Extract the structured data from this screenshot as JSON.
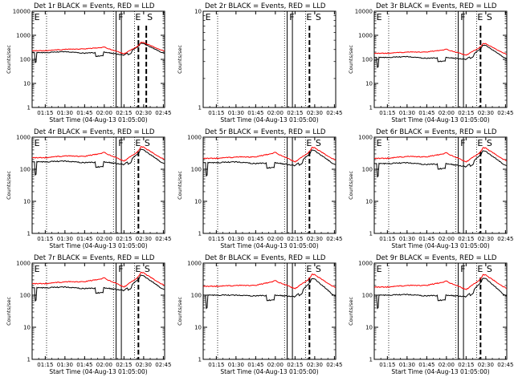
{
  "figure": {
    "xlabel": "Start Time (04-Aug-13 01:05:00)",
    "ylabel": "Counts/sec",
    "series_legend": "BLACK = Events, RED = LLD",
    "colors": {
      "events": "#000000",
      "lld": "#ff0000",
      "axes": "#000000",
      "background": "#ffffff"
    }
  },
  "chart_data": [
    {
      "type": "line",
      "title": "Det 1r BLACK = Events, RED = LLD",
      "x": [
        "01:15",
        "01:30",
        "01:45",
        "02:00",
        "02:15",
        "02:30",
        "02:45"
      ],
      "xlim_minutes": [
        65,
        166
      ],
      "yscale": "log",
      "ylim": [
        1,
        10000
      ],
      "yticks": [
        "1",
        "10",
        "100",
        "1000",
        "10000"
      ],
      "series": [
        {
          "name": "Events",
          "color": "#000000",
          "values": [
            190,
            210,
            180,
            200,
            150,
            450,
            180
          ]
        },
        {
          "name": "LLD",
          "color": "#ff0000",
          "values": [
            230,
            260,
            270,
            320,
            170,
            480,
            230
          ]
        }
      ],
      "dotted_lines_minutes": [
        76,
        127,
        143
      ],
      "dashed_lines_minutes": [
        146,
        152
      ],
      "solid_lines_minutes": [
        129,
        133
      ],
      "annotations": [
        {
          "text": "E",
          "minute": 66
        },
        {
          "text": "F",
          "minute": 130
        },
        {
          "text": "E",
          "minute": 143
        },
        {
          "text": "S",
          "minute": 152
        }
      ]
    },
    {
      "type": "line",
      "title": "Det 2r BLACK = Events, RED = LLD",
      "x": [
        "01:15",
        "01:30",
        "01:45",
        "02:00",
        "02:15",
        "02:30",
        "02:45"
      ],
      "xlim_minutes": [
        65,
        166
      ],
      "yscale": "log",
      "ylim": [
        1,
        10
      ],
      "yticks": [
        "1",
        "10"
      ],
      "series": [],
      "dotted_lines_minutes": [
        76,
        127,
        143
      ],
      "dashed_lines_minutes": [
        146
      ],
      "solid_lines_minutes": [
        129,
        133
      ],
      "annotations": [
        {
          "text": "E",
          "minute": 66
        },
        {
          "text": "F",
          "minute": 130
        },
        {
          "text": "E",
          "minute": 143
        },
        {
          "text": "S",
          "minute": 150
        }
      ]
    },
    {
      "type": "line",
      "title": "Det 3r BLACK = Events, RED = LLD",
      "x": [
        "01:15",
        "01:30",
        "01:45",
        "02:00",
        "02:15",
        "02:30",
        "02:45"
      ],
      "xlim_minutes": [
        65,
        166
      ],
      "yscale": "log",
      "ylim": [
        1,
        10000
      ],
      "yticks": [
        "1",
        "10",
        "100",
        "1000",
        "10000"
      ],
      "series": [
        {
          "name": "Events",
          "color": "#000000",
          "values": [
            120,
            130,
            110,
            120,
            100,
            380,
            110
          ]
        },
        {
          "name": "LLD",
          "color": "#ff0000",
          "values": [
            180,
            200,
            200,
            260,
            150,
            430,
            170
          ]
        }
      ],
      "dotted_lines_minutes": [
        76,
        127,
        143
      ],
      "dashed_lines_minutes": [
        146
      ],
      "solid_lines_minutes": [
        129,
        133
      ],
      "annotations": [
        {
          "text": "E",
          "minute": 66
        },
        {
          "text": "F",
          "minute": 130
        },
        {
          "text": "E",
          "minute": 143
        },
        {
          "text": "S",
          "minute": 150
        }
      ]
    },
    {
      "type": "line",
      "title": "Det 4r BLACK = Events, RED = LLD",
      "x": [
        "01:15",
        "01:30",
        "01:45",
        "02:00",
        "02:15",
        "02:30",
        "02:45"
      ],
      "xlim_minutes": [
        65,
        166
      ],
      "yscale": "log",
      "ylim": [
        1,
        1000
      ],
      "yticks": [
        "1",
        "10",
        "100",
        "1000"
      ],
      "series": [
        {
          "name": "Events",
          "color": "#000000",
          "values": [
            170,
            180,
            160,
            170,
            140,
            400,
            150
          ]
        },
        {
          "name": "LLD",
          "color": "#ff0000",
          "values": [
            230,
            260,
            250,
            330,
            180,
            470,
            210
          ]
        }
      ],
      "dotted_lines_minutes": [
        76,
        127,
        143
      ],
      "dashed_lines_minutes": [
        146
      ],
      "solid_lines_minutes": [
        129,
        133
      ],
      "annotations": [
        {
          "text": "E",
          "minute": 66
        },
        {
          "text": "F",
          "minute": 130
        },
        {
          "text": "E",
          "minute": 143
        },
        {
          "text": "S",
          "minute": 150
        }
      ]
    },
    {
      "type": "line",
      "title": "Det 5r BLACK = Events, RED = LLD",
      "x": [
        "01:15",
        "01:30",
        "01:45",
        "02:00",
        "02:15",
        "02:30",
        "02:45"
      ],
      "xlim_minutes": [
        65,
        166
      ],
      "yscale": "log",
      "ylim": [
        1,
        1000
      ],
      "yticks": [
        "1",
        "10",
        "100",
        "1000"
      ],
      "series": [
        {
          "name": "Events",
          "color": "#000000",
          "values": [
            160,
            170,
            150,
            160,
            130,
            380,
            140
          ]
        },
        {
          "name": "LLD",
          "color": "#ff0000",
          "values": [
            220,
            240,
            240,
            330,
            170,
            450,
            200
          ]
        }
      ],
      "dotted_lines_minutes": [
        76,
        127,
        143
      ],
      "dashed_lines_minutes": [
        146
      ],
      "solid_lines_minutes": [
        129,
        133
      ],
      "annotations": [
        {
          "text": "E",
          "minute": 143
        },
        {
          "text": "S",
          "minute": 150
        }
      ]
    },
    {
      "type": "line",
      "title": "Det 6r BLACK = Events, RED = LLD",
      "x": [
        "01:15",
        "01:30",
        "01:45",
        "02:00",
        "02:15",
        "02:30",
        "02:45"
      ],
      "xlim_minutes": [
        65,
        166
      ],
      "yscale": "log",
      "ylim": [
        1,
        1000
      ],
      "yticks": [
        "1",
        "10",
        "100",
        "1000"
      ],
      "series": [
        {
          "name": "Events",
          "color": "#000000",
          "values": [
            150,
            160,
            140,
            150,
            120,
            360,
            130
          ]
        },
        {
          "name": "LLD",
          "color": "#ff0000",
          "values": [
            220,
            250,
            240,
            320,
            170,
            440,
            190
          ]
        }
      ],
      "dotted_lines_minutes": [
        76,
        127,
        143
      ],
      "dashed_lines_minutes": [
        146
      ],
      "solid_lines_minutes": [
        129,
        133
      ],
      "annotations": [
        {
          "text": "E",
          "minute": 66
        },
        {
          "text": "F",
          "minute": 130
        },
        {
          "text": "E",
          "minute": 143
        },
        {
          "text": "S",
          "minute": 150
        }
      ]
    },
    {
      "type": "line",
      "title": "Det 7r BLACK = Events, RED = LLD",
      "x": [
        "01:15",
        "01:30",
        "01:45",
        "02:00",
        "02:15",
        "02:30",
        "02:45"
      ],
      "xlim_minutes": [
        65,
        166
      ],
      "yscale": "log",
      "ylim": [
        1,
        1000
      ],
      "yticks": [
        "1",
        "10",
        "100",
        "1000"
      ],
      "series": [
        {
          "name": "Events",
          "color": "#000000",
          "values": [
            170,
            180,
            160,
            170,
            140,
            400,
            150
          ]
        },
        {
          "name": "LLD",
          "color": "#ff0000",
          "values": [
            230,
            260,
            260,
            340,
            180,
            480,
            210
          ]
        }
      ],
      "dotted_lines_minutes": [
        76,
        127,
        143
      ],
      "dashed_lines_minutes": [
        146
      ],
      "solid_lines_minutes": [
        129,
        133
      ],
      "annotations": [
        {
          "text": "E",
          "minute": 66
        },
        {
          "text": "F",
          "minute": 130
        },
        {
          "text": "E",
          "minute": 143
        },
        {
          "text": "S",
          "minute": 150
        }
      ]
    },
    {
      "type": "line",
      "title": "Det 8r BLACK = Events, RED = LLD",
      "x": [
        "01:15",
        "01:30",
        "01:45",
        "02:00",
        "02:15",
        "02:30",
        "02:45"
      ],
      "xlim_minutes": [
        65,
        166
      ],
      "yscale": "log",
      "ylim": [
        1,
        1000
      ],
      "yticks": [
        "1",
        "10",
        "100",
        "1000"
      ],
      "series": [
        {
          "name": "Events",
          "color": "#000000",
          "values": [
            100,
            100,
            95,
            100,
            90,
            320,
            95
          ]
        },
        {
          "name": "LLD",
          "color": "#ff0000",
          "values": [
            190,
            200,
            200,
            280,
            160,
            420,
            180
          ]
        }
      ],
      "dotted_lines_minutes": [
        76,
        127,
        143
      ],
      "dashed_lines_minutes": [
        146
      ],
      "solid_lines_minutes": [
        129,
        133
      ],
      "annotations": [
        {
          "text": "E",
          "minute": 143
        },
        {
          "text": "S",
          "minute": 150
        }
      ]
    },
    {
      "type": "line",
      "title": "Det 9r BLACK = Events, RED = LLD",
      "x": [
        "01:15",
        "01:30",
        "01:45",
        "02:00",
        "02:15",
        "02:30",
        "02:45"
      ],
      "xlim_minutes": [
        65,
        166
      ],
      "yscale": "log",
      "ylim": [
        1,
        1000
      ],
      "yticks": [
        "1",
        "10",
        "100",
        "1000"
      ],
      "series": [
        {
          "name": "Events",
          "color": "#000000",
          "values": [
            100,
            105,
            95,
            100,
            90,
            330,
            95
          ]
        },
        {
          "name": "LLD",
          "color": "#ff0000",
          "values": [
            180,
            200,
            200,
            270,
            150,
            410,
            170
          ]
        }
      ],
      "dotted_lines_minutes": [
        76,
        127,
        143
      ],
      "dashed_lines_minutes": [
        146
      ],
      "solid_lines_minutes": [
        129,
        133
      ],
      "annotations": [
        {
          "text": "E",
          "minute": 66
        },
        {
          "text": "F",
          "minute": 130
        },
        {
          "text": "E",
          "minute": 143
        },
        {
          "text": "S",
          "minute": 150
        }
      ]
    }
  ]
}
